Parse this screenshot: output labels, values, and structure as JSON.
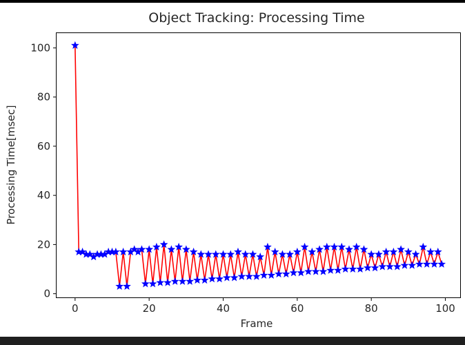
{
  "chart_data": {
    "type": "line",
    "title": "Object Tracking: Processing Time",
    "xlabel": "Frame",
    "ylabel": "Processing Time[msec]",
    "xlim": [
      -5,
      104
    ],
    "ylim": [
      -1.5,
      106
    ],
    "xticks": [
      0,
      20,
      40,
      60,
      80,
      100
    ],
    "yticks": [
      0,
      20,
      40,
      60,
      80,
      100
    ],
    "x_tick_labels": [
      "0",
      "20",
      "40",
      "60",
      "80",
      "100"
    ],
    "y_tick_labels": [
      "0",
      "20",
      "40",
      "60",
      "80",
      "100"
    ],
    "grid": false,
    "line_color": "#ff0000",
    "marker_color": "#0000ff",
    "marker": "star",
    "series": [
      {
        "x": [
          0,
          1,
          2,
          3,
          4,
          5,
          6,
          7,
          8,
          9,
          10,
          11,
          12,
          13,
          14,
          15,
          16,
          17,
          18,
          19,
          20,
          21,
          22,
          23,
          24,
          25,
          26,
          27,
          28,
          29,
          30,
          31,
          32,
          33,
          34,
          35,
          36,
          37,
          38,
          39,
          40,
          41,
          42,
          43,
          44,
          45,
          46,
          47,
          48,
          49,
          50,
          51,
          52,
          53,
          54,
          55,
          56,
          57,
          58,
          59,
          60,
          61,
          62,
          63,
          64,
          65,
          66,
          67,
          68,
          69,
          70,
          71,
          72,
          73,
          74,
          75,
          76,
          77,
          78,
          79,
          80,
          81,
          82,
          83,
          84,
          85,
          86,
          87,
          88,
          89,
          90,
          91,
          92,
          93,
          94,
          95,
          96,
          97,
          98,
          99
        ],
        "y": [
          101,
          17,
          17,
          16,
          16,
          15,
          16,
          16,
          16,
          17,
          17,
          17,
          3,
          17,
          3,
          17,
          18,
          17,
          18,
          4,
          18,
          4,
          19,
          4.5,
          20,
          4.5,
          18,
          5,
          19,
          5,
          18,
          5,
          17,
          5.5,
          16,
          5.5,
          16,
          6,
          16,
          6,
          16,
          6.5,
          16,
          6.5,
          17,
          7,
          16,
          7,
          16,
          7,
          15,
          7.5,
          19,
          7.5,
          17,
          8,
          16,
          8,
          16,
          8.5,
          17,
          8.5,
          19,
          9,
          17,
          9,
          18,
          9,
          19,
          9.5,
          19,
          9.5,
          19,
          10,
          18,
          10,
          19,
          10,
          18,
          10.5,
          16,
          10.5,
          16,
          11,
          17,
          11,
          17,
          11,
          18,
          11.5,
          17,
          11.5,
          16,
          12,
          19,
          12,
          17,
          12,
          17,
          12
        ]
      }
    ]
  }
}
